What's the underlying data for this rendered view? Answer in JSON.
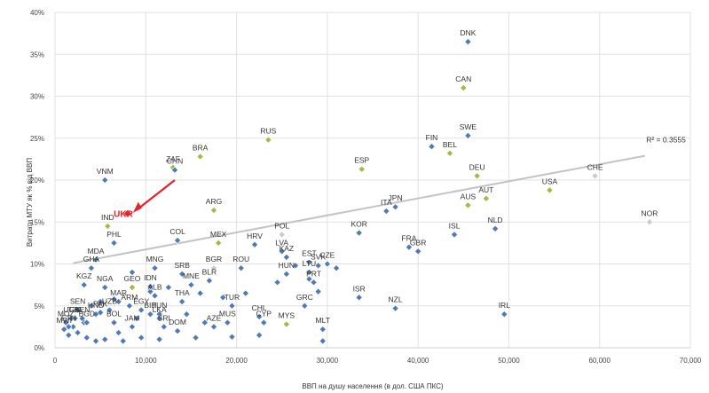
{
  "chart_data": {
    "type": "scatter",
    "xlabel": "ВВП на душу населення (в дол. США ПКС)",
    "ylabel": "Витрати МТУ як % від ВВП",
    "xlim": [
      0,
      70000
    ],
    "ylim": [
      0,
      0.4
    ],
    "x_ticks": [
      "0",
      "10,000",
      "20,000",
      "30,000",
      "40,000",
      "50,000",
      "60,000",
      "70,000"
    ],
    "y_ticks": [
      "0%",
      "5%",
      "10%",
      "15%",
      "20%",
      "25%",
      "30%",
      "35%",
      "40%"
    ],
    "grid": true,
    "trendline": {
      "x": [
        2000,
        65000
      ],
      "y": [
        0.101,
        0.229
      ],
      "label": "R² = 0.3555"
    },
    "colors": {
      "blue": "#4f7bb5",
      "green": "#a6b742",
      "grey": "#c8cdd3",
      "highlight": "#e8202a",
      "trend": "#bfc4c9"
    },
    "highlight": {
      "label": "UKR",
      "x": 8000,
      "y": 0.16,
      "arrow_from": [
        13200,
        0.2
      ]
    },
    "labeled_points": [
      {
        "label": "DNK",
        "x": 45500,
        "y": 0.365,
        "c": "blue"
      },
      {
        "label": "CAN",
        "x": 45000,
        "y": 0.31,
        "c": "green"
      },
      {
        "label": "SWE",
        "x": 45500,
        "y": 0.253,
        "c": "blue"
      },
      {
        "label": "RUS",
        "x": 23500,
        "y": 0.248,
        "c": "green"
      },
      {
        "label": "FIN",
        "x": 41500,
        "y": 0.24,
        "c": "blue"
      },
      {
        "label": "BEL",
        "x": 43500,
        "y": 0.232,
        "c": "green"
      },
      {
        "label": "BRA",
        "x": 16000,
        "y": 0.228,
        "c": "green"
      },
      {
        "label": "ZAF",
        "x": 13000,
        "y": 0.215,
        "c": "green"
      },
      {
        "label": "CHN",
        "x": 13200,
        "y": 0.212,
        "c": "blue"
      },
      {
        "label": "ESP",
        "x": 33800,
        "y": 0.213,
        "c": "green"
      },
      {
        "label": "DEU",
        "x": 46500,
        "y": 0.205,
        "c": "green"
      },
      {
        "label": "CHE",
        "x": 59500,
        "y": 0.205,
        "c": "grey"
      },
      {
        "label": "VNM",
        "x": 5500,
        "y": 0.2,
        "c": "blue"
      },
      {
        "label": "USA",
        "x": 54500,
        "y": 0.188,
        "c": "green"
      },
      {
        "label": "AUS",
        "x": 45500,
        "y": 0.17,
        "c": "green"
      },
      {
        "label": "AUT",
        "x": 47500,
        "y": 0.178,
        "c": "green"
      },
      {
        "label": "JPN",
        "x": 37500,
        "y": 0.168,
        "c": "blue"
      },
      {
        "label": "ITA",
        "x": 36500,
        "y": 0.163,
        "c": "blue"
      },
      {
        "label": "ARG",
        "x": 17500,
        "y": 0.164,
        "c": "green"
      },
      {
        "label": "NLD",
        "x": 48500,
        "y": 0.142,
        "c": "blue"
      },
      {
        "label": "NOR",
        "x": 65500,
        "y": 0.15,
        "c": "grey"
      },
      {
        "label": "IND",
        "x": 5800,
        "y": 0.145,
        "c": "green"
      },
      {
        "label": "KOR",
        "x": 33500,
        "y": 0.137,
        "c": "blue"
      },
      {
        "label": "ISL",
        "x": 44000,
        "y": 0.135,
        "c": "blue"
      },
      {
        "label": "FRA",
        "x": 39000,
        "y": 0.12,
        "c": "blue"
      },
      {
        "label": "GBR",
        "x": 40000,
        "y": 0.115,
        "c": "blue"
      },
      {
        "label": "COL",
        "x": 13500,
        "y": 0.128,
        "c": "blue"
      },
      {
        "label": "MEX",
        "x": 18000,
        "y": 0.125,
        "c": "green"
      },
      {
        "label": "HRV",
        "x": 22000,
        "y": 0.123,
        "c": "blue"
      },
      {
        "label": "POL",
        "x": 25000,
        "y": 0.135,
        "c": "grey"
      },
      {
        "label": "PHL",
        "x": 6500,
        "y": 0.125,
        "c": "blue"
      },
      {
        "label": "LVA",
        "x": 25000,
        "y": 0.115,
        "c": "blue"
      },
      {
        "label": "KAZ",
        "x": 25500,
        "y": 0.108,
        "c": "blue"
      },
      {
        "label": "EST",
        "x": 28000,
        "y": 0.102,
        "c": "blue"
      },
      {
        "label": "SVK",
        "x": 29000,
        "y": 0.098,
        "c": "blue"
      },
      {
        "label": "CZE",
        "x": 30000,
        "y": 0.1,
        "c": "blue"
      },
      {
        "label": "MDA",
        "x": 4500,
        "y": 0.105,
        "c": "blue"
      },
      {
        "label": "ROU",
        "x": 20500,
        "y": 0.095,
        "c": "blue"
      },
      {
        "label": "HUN",
        "x": 25500,
        "y": 0.088,
        "c": "blue"
      },
      {
        "label": "BGR",
        "x": 17500,
        "y": 0.095,
        "c": "grey"
      },
      {
        "label": "MNG",
        "x": 11000,
        "y": 0.095,
        "c": "blue"
      },
      {
        "label": "SRB",
        "x": 14000,
        "y": 0.088,
        "c": "blue"
      },
      {
        "label": "GHA",
        "x": 4000,
        "y": 0.095,
        "c": "blue"
      },
      {
        "label": "LTU",
        "x": 28000,
        "y": 0.09,
        "c": "blue"
      },
      {
        "label": "BLR",
        "x": 17000,
        "y": 0.08,
        "c": "blue"
      },
      {
        "label": "MNE",
        "x": 15000,
        "y": 0.075,
        "c": "blue"
      },
      {
        "label": "PRT",
        "x": 28500,
        "y": 0.078,
        "c": "blue"
      },
      {
        "label": "ISR",
        "x": 33500,
        "y": 0.06,
        "c": "blue"
      },
      {
        "label": "IDN",
        "x": 10500,
        "y": 0.073,
        "c": "blue"
      },
      {
        "label": "KGZ",
        "x": 3200,
        "y": 0.075,
        "c": "blue"
      },
      {
        "label": "NGA",
        "x": 5500,
        "y": 0.072,
        "c": "blue"
      },
      {
        "label": "GEO",
        "x": 8500,
        "y": 0.072,
        "c": "green"
      },
      {
        "label": "ALB",
        "x": 11000,
        "y": 0.062,
        "c": "blue"
      },
      {
        "label": "NZL",
        "x": 37500,
        "y": 0.047,
        "c": "blue"
      },
      {
        "label": "IRL",
        "x": 49500,
        "y": 0.04,
        "c": "blue"
      },
      {
        "label": "MAR",
        "x": 7000,
        "y": 0.055,
        "c": "blue"
      },
      {
        "label": "ARM",
        "x": 8200,
        "y": 0.05,
        "c": "blue"
      },
      {
        "label": "THA",
        "x": 14000,
        "y": 0.055,
        "c": "blue"
      },
      {
        "label": "TUR",
        "x": 19500,
        "y": 0.05,
        "c": "blue"
      },
      {
        "label": "EGY",
        "x": 9500,
        "y": 0.045,
        "c": "blue"
      },
      {
        "label": "TUN",
        "x": 11500,
        "y": 0.04,
        "c": "blue"
      },
      {
        "label": "BIH",
        "x": 10500,
        "y": 0.04,
        "c": "blue"
      },
      {
        "label": "CHL",
        "x": 22500,
        "y": 0.037,
        "c": "blue"
      },
      {
        "label": "MYS",
        "x": 25500,
        "y": 0.028,
        "c": "green"
      },
      {
        "label": "GRC",
        "x": 27500,
        "y": 0.05,
        "c": "blue"
      },
      {
        "label": "MUS",
        "x": 19000,
        "y": 0.03,
        "c": "blue"
      },
      {
        "label": "CYP",
        "x": 23000,
        "y": 0.03,
        "c": "blue"
      },
      {
        "label": "SRI",
        "x": 12000,
        "y": 0.025,
        "c": "blue"
      },
      {
        "label": "AZE",
        "x": 17500,
        "y": 0.025,
        "c": "blue"
      },
      {
        "label": "DOM",
        "x": 13500,
        "y": 0.02,
        "c": "blue"
      },
      {
        "label": "MLT",
        "x": 29500,
        "y": 0.022,
        "c": "blue"
      },
      {
        "label": "UGA",
        "x": 1800,
        "y": 0.035,
        "c": "blue"
      },
      {
        "label": "SEN",
        "x": 2500,
        "y": 0.045,
        "c": "blue"
      },
      {
        "label": "TZA",
        "x": 2200,
        "y": 0.035,
        "c": "blue"
      },
      {
        "label": "KEN",
        "x": 3000,
        "y": 0.035,
        "c": "blue"
      },
      {
        "label": "MOZ",
        "x": 1200,
        "y": 0.03,
        "c": "blue"
      },
      {
        "label": "ETH",
        "x": 1500,
        "y": 0.025,
        "c": "blue"
      },
      {
        "label": "MWI",
        "x": 1000,
        "y": 0.022,
        "c": "blue"
      },
      {
        "label": "PAK",
        "x": 5000,
        "y": 0.042,
        "c": "blue"
      },
      {
        "label": "BGD",
        "x": 3500,
        "y": 0.03,
        "c": "blue"
      },
      {
        "label": "UZB",
        "x": 6000,
        "y": 0.045,
        "c": "blue"
      },
      {
        "label": "LKA",
        "x": 11500,
        "y": 0.035,
        "c": "blue"
      },
      {
        "label": "HND",
        "x": 4500,
        "y": 0.04,
        "c": "blue"
      },
      {
        "label": "BOL",
        "x": 6500,
        "y": 0.03,
        "c": "blue"
      },
      {
        "label": "JAM",
        "x": 8500,
        "y": 0.025,
        "c": "blue"
      }
    ],
    "extra_points": [
      {
        "x": 1500,
        "y": 0.015,
        "c": "blue"
      },
      {
        "x": 2500,
        "y": 0.018,
        "c": "blue"
      },
      {
        "x": 3500,
        "y": 0.012,
        "c": "blue"
      },
      {
        "x": 5500,
        "y": 0.01,
        "c": "blue"
      },
      {
        "x": 7500,
        "y": 0.008,
        "c": "blue"
      },
      {
        "x": 9500,
        "y": 0.012,
        "c": "blue"
      },
      {
        "x": 11500,
        "y": 0.01,
        "c": "blue"
      },
      {
        "x": 15500,
        "y": 0.012,
        "c": "blue"
      },
      {
        "x": 19500,
        "y": 0.013,
        "c": "blue"
      },
      {
        "x": 22500,
        "y": 0.015,
        "c": "blue"
      },
      {
        "x": 29500,
        "y": 0.008,
        "c": "blue"
      },
      {
        "x": 12500,
        "y": 0.072,
        "c": "blue"
      },
      {
        "x": 10500,
        "y": 0.067,
        "c": "blue"
      },
      {
        "x": 16000,
        "y": 0.065,
        "c": "blue"
      },
      {
        "x": 24500,
        "y": 0.078,
        "c": "blue"
      },
      {
        "x": 28000,
        "y": 0.082,
        "c": "blue"
      },
      {
        "x": 29000,
        "y": 0.067,
        "c": "blue"
      },
      {
        "x": 31000,
        "y": 0.095,
        "c": "blue"
      },
      {
        "x": 26500,
        "y": 0.098,
        "c": "blue"
      },
      {
        "x": 8500,
        "y": 0.09,
        "c": "blue"
      },
      {
        "x": 6500,
        "y": 0.058,
        "c": "blue"
      },
      {
        "x": 5000,
        "y": 0.055,
        "c": "blue"
      },
      {
        "x": 4000,
        "y": 0.05,
        "c": "blue"
      },
      {
        "x": 3200,
        "y": 0.03,
        "c": "blue"
      },
      {
        "x": 2000,
        "y": 0.025,
        "c": "blue"
      },
      {
        "x": 14500,
        "y": 0.04,
        "c": "blue"
      },
      {
        "x": 16500,
        "y": 0.03,
        "c": "blue"
      },
      {
        "x": 21000,
        "y": 0.065,
        "c": "blue"
      },
      {
        "x": 18500,
        "y": 0.06,
        "c": "blue"
      },
      {
        "x": 7000,
        "y": 0.018,
        "c": "blue"
      },
      {
        "x": 4500,
        "y": 0.008,
        "c": "blue"
      },
      {
        "x": 9000,
        "y": 0.035,
        "c": "blue"
      }
    ]
  }
}
